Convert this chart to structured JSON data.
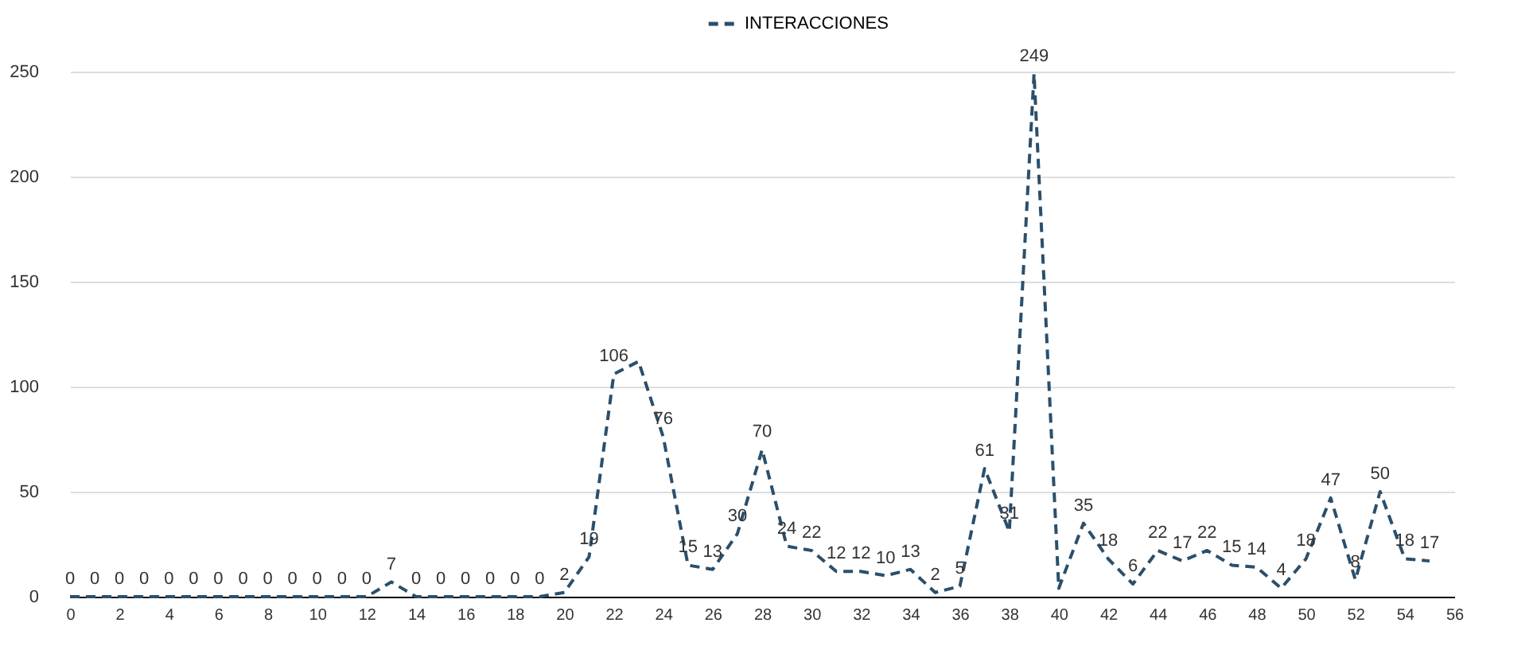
{
  "chart_data": {
    "type": "line",
    "x": [
      0,
      1,
      2,
      3,
      4,
      5,
      6,
      7,
      8,
      9,
      10,
      11,
      12,
      13,
      14,
      15,
      16,
      17,
      18,
      19,
      20,
      21,
      22,
      23,
      24,
      25,
      26,
      27,
      28,
      29,
      30,
      31,
      32,
      33,
      34,
      35,
      36,
      37,
      38,
      39,
      40,
      41,
      42,
      43,
      44,
      45,
      46,
      47,
      48,
      49,
      50,
      51,
      52,
      53,
      54,
      55
    ],
    "series": [
      {
        "name": "INTERACCIONES",
        "color": "#2b4f6b",
        "values": [
          0,
          0,
          0,
          0,
          0,
          0,
          0,
          0,
          0,
          0,
          0,
          0,
          0,
          7,
          0,
          0,
          0,
          0,
          0,
          0,
          2,
          19,
          106,
          112,
          76,
          15,
          13,
          30,
          70,
          24,
          22,
          12,
          12,
          10,
          13,
          2,
          5,
          61,
          31,
          249,
          4,
          35,
          18,
          6,
          22,
          17,
          22,
          15,
          14,
          4,
          18,
          47,
          8,
          50,
          18,
          17
        ],
        "value_labels": [
          "0",
          "0",
          "0",
          "0",
          "0",
          "0",
          "0",
          "0",
          "0",
          "0",
          "0",
          "0",
          "0",
          "7",
          "0",
          "0",
          "0",
          "0",
          "0",
          "0",
          "2",
          "19",
          "106",
          null,
          "76",
          "15",
          "13",
          "30",
          "70",
          "24",
          "22",
          "12",
          "12",
          "10",
          "13",
          "2",
          "5",
          "61",
          "31",
          "249",
          null,
          "35",
          "18",
          "6",
          "22",
          "17",
          "22",
          "15",
          "14",
          "4",
          "18",
          "47",
          "8",
          "50",
          "18",
          "17"
        ]
      }
    ],
    "xlim": [
      0,
      56
    ],
    "xticks": [
      0,
      2,
      4,
      6,
      8,
      10,
      12,
      14,
      16,
      18,
      20,
      22,
      24,
      26,
      28,
      30,
      32,
      34,
      36,
      38,
      40,
      42,
      44,
      46,
      48,
      50,
      52,
      54,
      56
    ],
    "ylim": [
      0,
      250
    ],
    "yticks": [
      0,
      50,
      100,
      150,
      200,
      250
    ],
    "grid": "y",
    "legend": "top",
    "line_style": "dashed",
    "marker": "none"
  }
}
